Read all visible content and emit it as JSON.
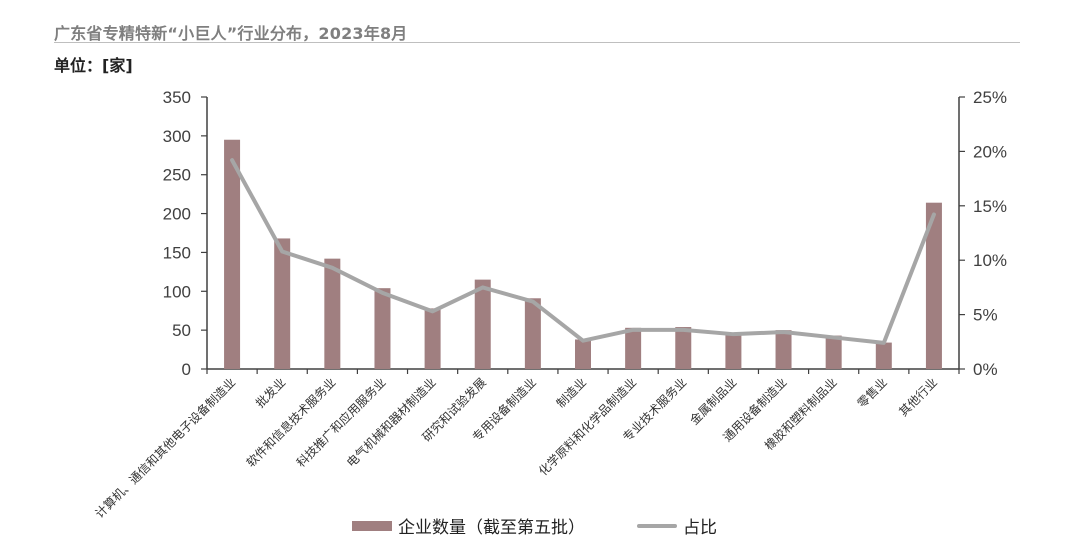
{
  "header": {
    "title": "广东省专精特新“小巨人”行业分布，2023年8月",
    "unit": "单位：[家]"
  },
  "legend": {
    "bar_label": "企业数量（截至第五批）",
    "line_label": "占比"
  },
  "colors": {
    "bar": "#a07f80",
    "line": "#a6a6a6",
    "axis": "#404040"
  },
  "chart_data": {
    "type": "bar+line",
    "title": "广东省专精特新“小巨人”行业分布，2023年8月",
    "ylabel": "单位：[家]",
    "y2label": "",
    "categories": [
      "计算机、通信和其他电子设备制造业",
      "批发业",
      "软件和信息技术服务业",
      "科技推广和应用服务业",
      "电气机械和器材制造业",
      "研究和试验发展",
      "专用设备制造业",
      "制造业",
      "化学原料和化学品制造业",
      "专业技术服务业",
      "金属制品业",
      "通用设备制造业",
      "橡胶和塑料制品业",
      "零售业",
      "其他行业"
    ],
    "series": [
      {
        "name": "企业数量（截至第五批）",
        "type": "bar",
        "axis": "left",
        "values": [
          295,
          168,
          142,
          104,
          78,
          115,
          91,
          38,
          53,
          54,
          47,
          50,
          43,
          34,
          214
        ]
      },
      {
        "name": "占比",
        "type": "line",
        "axis": "right",
        "unit": "%",
        "values": [
          19.2,
          10.8,
          9.3,
          7.0,
          5.3,
          7.5,
          6.2,
          2.6,
          3.6,
          3.6,
          3.2,
          3.4,
          2.9,
          2.4,
          14.2
        ]
      }
    ],
    "ylim": [
      0,
      350
    ],
    "yticks": [
      0,
      50,
      100,
      150,
      200,
      250,
      300,
      350
    ],
    "y2lim": [
      0,
      25
    ],
    "y2ticks": [
      "0%",
      "5%",
      "10%",
      "15%",
      "20%",
      "25%"
    ],
    "grid": false,
    "legend_position": "bottom"
  }
}
